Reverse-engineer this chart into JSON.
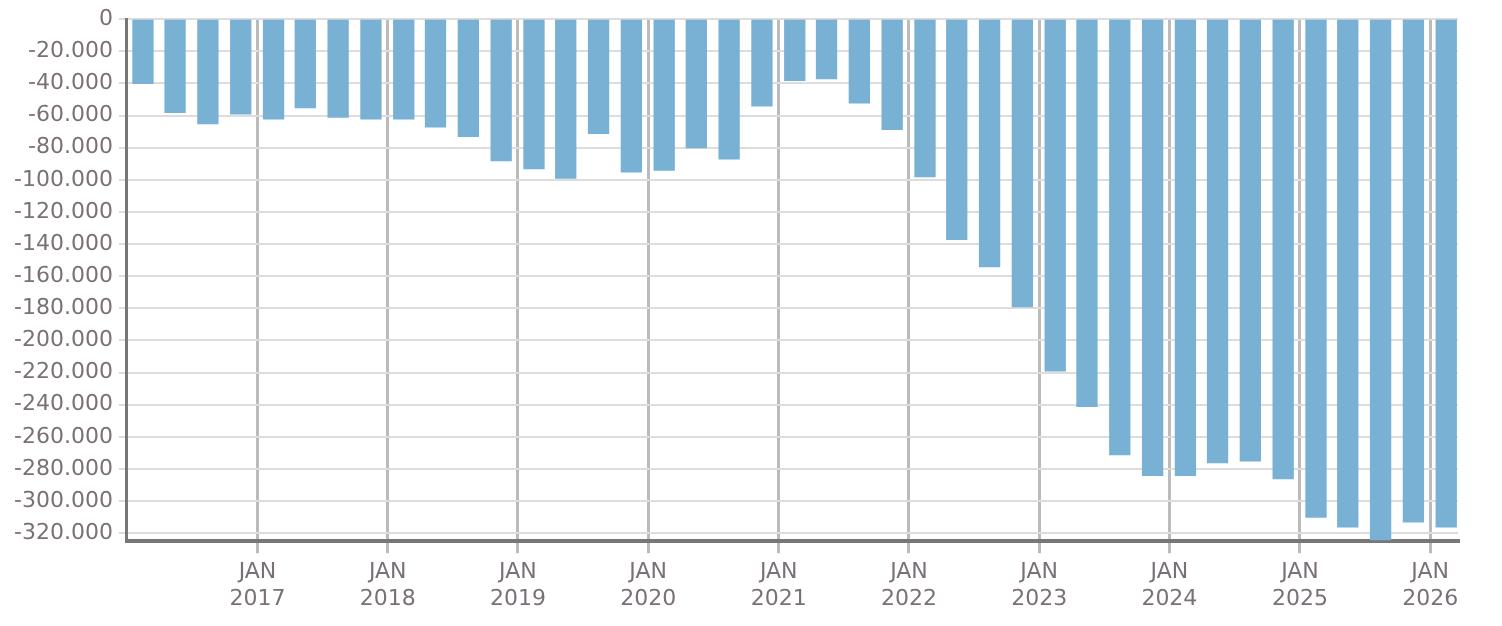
{
  "chart_data": {
    "type": "bar",
    "x": [
      "2016-02-15",
      "2016-05-15",
      "2016-08-15",
      "2016-11-15",
      "2017-02-15",
      "2017-05-15",
      "2017-08-15",
      "2017-11-15",
      "2018-02-15",
      "2018-05-15",
      "2018-08-15",
      "2018-11-15",
      "2019-02-15",
      "2019-05-15",
      "2019-08-15",
      "2019-11-15",
      "2020-02-15",
      "2020-05-15",
      "2020-08-15",
      "2020-11-15",
      "2021-02-15",
      "2021-05-15",
      "2021-08-15",
      "2021-11-15",
      "2022-02-15",
      "2022-05-15",
      "2022-08-15",
      "2022-11-15",
      "2023-02-15",
      "2023-05-15",
      "2023-08-15",
      "2023-11-15",
      "2024-02-15",
      "2024-05-15",
      "2024-08-15",
      "2024-11-15",
      "2025-02-15",
      "2025-05-15",
      "2025-08-15",
      "2025-11-15",
      "2026-02-15"
    ],
    "values": [
      -40000,
      -58000,
      -65000,
      -59000,
      -62000,
      -55000,
      -61000,
      -62000,
      -62000,
      -67000,
      -73000,
      -88000,
      -93000,
      -99000,
      -71000,
      -95000,
      -94000,
      -80000,
      -87000,
      -54000,
      -38000,
      -37000,
      -52000,
      -68500,
      -98000,
      -137000,
      -154000,
      -179000,
      -219000,
      -241000,
      -271000,
      -284000,
      -284000,
      -276000,
      -275000,
      -286000,
      -310000,
      -316000,
      -324000,
      -313000,
      -316000
    ],
    "color": "#78b1d3",
    "ylim": [
      -325000,
      0
    ],
    "yticks": [
      0,
      {
        "value": -20000,
        "label": "-20.000"
      },
      {
        "value": -40000,
        "label": "-40.000"
      },
      {
        "value": -60000,
        "label": "-60.000"
      },
      {
        "value": -80000,
        "label": "-80.000"
      },
      {
        "value": -100000,
        "label": "-100.000"
      },
      {
        "value": -120000,
        "label": "-120.000"
      },
      {
        "value": -140000,
        "label": "-140.000"
      },
      {
        "value": -160000,
        "label": "-160.000"
      },
      {
        "value": -180000,
        "label": "-180.000"
      },
      {
        "value": -200000,
        "label": "-200.000"
      },
      {
        "value": -220000,
        "label": "-220.000"
      },
      {
        "value": -240000,
        "label": "-240.000"
      },
      {
        "value": -260000,
        "label": "-260.000"
      },
      {
        "value": -280000,
        "label": "-280.000"
      },
      {
        "value": -300000,
        "label": "-300.000"
      },
      {
        "value": -320000,
        "label": "-320.000"
      }
    ],
    "xlim": [
      "2016-01-01",
      "2026-03-20"
    ],
    "xticks": [
      {
        "value": "2017-01-01",
        "label": "JAN 2017"
      },
      {
        "value": "2018-01-01",
        "label": "JAN 2018"
      },
      {
        "value": "2019-01-01",
        "label": "JAN 2019"
      },
      {
        "value": "2020-01-01",
        "label": "JAN 2020"
      },
      {
        "value": "2021-01-01",
        "label": "JAN 2021"
      },
      {
        "value": "2022-01-01",
        "label": "JAN 2022"
      },
      {
        "value": "2023-01-01",
        "label": "JAN 2023"
      },
      {
        "value": "2024-01-01",
        "label": "JAN 2024"
      },
      {
        "value": "2025-01-01",
        "label": "JAN 2025"
      },
      {
        "value": "2026-01-01",
        "label": "JAN 2026"
      }
    ],
    "grid": true,
    "legend": false
  }
}
